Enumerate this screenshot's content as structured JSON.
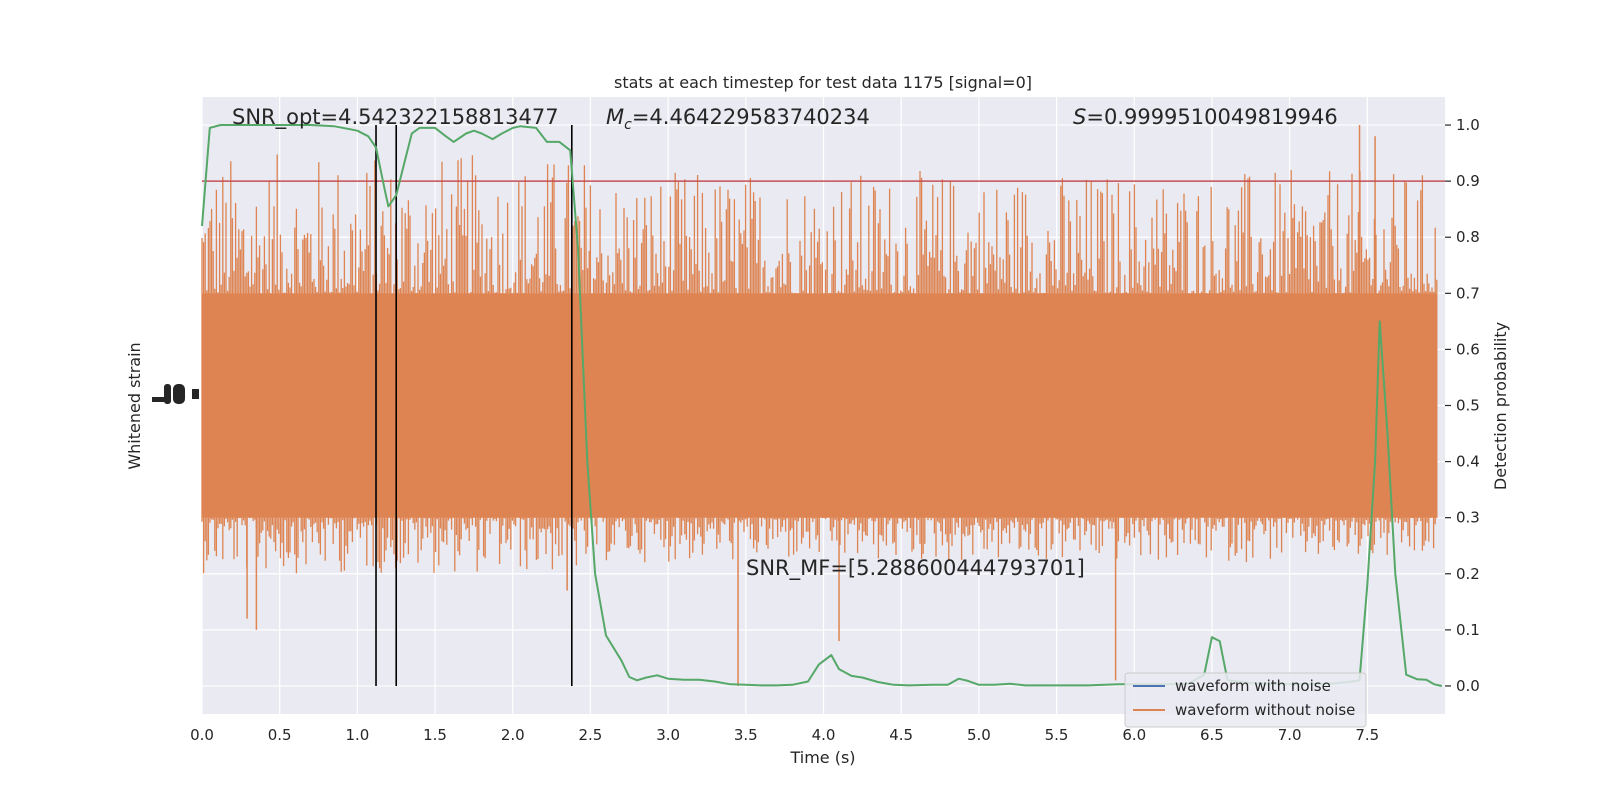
{
  "chart_data": {
    "type": "line",
    "title": "stats at each timestep for test data 1175 [signal=0]",
    "xlabel": "Time (s)",
    "ylabel_left": "Whitened strain",
    "ylabel_right": "Detection probability",
    "xlim": [
      0,
      8
    ],
    "ylim_right": [
      -0.05,
      1.05
    ],
    "x_ticks": [
      "0.0",
      "0.5",
      "1.0",
      "1.5",
      "2.0",
      "2.5",
      "3.0",
      "3.5",
      "4.0",
      "4.5",
      "5.0",
      "5.5",
      "6.0",
      "6.5",
      "7.0",
      "7.5"
    ],
    "y_ticks_right": [
      "0.0",
      "0.1",
      "0.2",
      "0.3",
      "0.4",
      "0.5",
      "0.6",
      "0.7",
      "0.8",
      "0.9",
      "1.0"
    ],
    "grid": true,
    "threshold": 0.9,
    "vertical_lines": [
      1.12,
      1.25,
      2.38
    ],
    "annotations": {
      "snr_opt": "SNR_opt=4.542322158813477",
      "mc_symbol": "M",
      "mc_sub": "c",
      "mc_value": "=4.464229583740234",
      "s_symbol": "S",
      "s_value": "=0.9999510049819946",
      "snr_mf": "SNR_MF=[5.288600444793701]"
    },
    "legend": {
      "position": "lower-right",
      "entries": [
        "waveform with noise",
        "waveform without noise"
      ]
    },
    "series": [
      {
        "name": "waveform without noise",
        "color": "#dd8452",
        "kind": "strain",
        "bands": [
          {
            "x": [
              0.0,
              2.5
            ],
            "outer": [
              0.2,
              0.95
            ],
            "body": [
              0.3,
              0.7
            ]
          },
          {
            "x": [
              2.5,
              7.95
            ],
            "outer": [
              0.22,
              0.92
            ],
            "body": [
              0.3,
              0.7
            ]
          }
        ],
        "spikes": [
          {
            "x": 3.45,
            "y": 0.0
          },
          {
            "x": 5.88,
            "y": 0.01
          },
          {
            "x": 7.45,
            "y": 1.0
          },
          {
            "x": 0.29,
            "y": 0.12
          },
          {
            "x": 0.35,
            "y": 0.1
          },
          {
            "x": 7.55,
            "y": 0.98
          },
          {
            "x": 4.1,
            "y": 0.08
          },
          {
            "x": 2.35,
            "y": 0.17
          }
        ]
      },
      {
        "name": "waveform with noise",
        "color": "#4c72b0",
        "kind": "hidden"
      },
      {
        "name": "Detection probability",
        "color": "#55a868",
        "kind": "probability",
        "points": [
          [
            0.0,
            0.82
          ],
          [
            0.05,
            0.995
          ],
          [
            0.12,
            1.0
          ],
          [
            0.3,
            1.0
          ],
          [
            0.5,
            1.0
          ],
          [
            0.7,
            1.0
          ],
          [
            0.85,
            0.998
          ],
          [
            1.0,
            0.99
          ],
          [
            1.07,
            0.98
          ],
          [
            1.12,
            0.96
          ],
          [
            1.18,
            0.88
          ],
          [
            1.2,
            0.855
          ],
          [
            1.25,
            0.875
          ],
          [
            1.3,
            0.93
          ],
          [
            1.35,
            0.985
          ],
          [
            1.4,
            0.995
          ],
          [
            1.5,
            0.995
          ],
          [
            1.57,
            0.98
          ],
          [
            1.62,
            0.97
          ],
          [
            1.7,
            0.985
          ],
          [
            1.75,
            0.99
          ],
          [
            1.8,
            0.985
          ],
          [
            1.87,
            0.975
          ],
          [
            1.93,
            0.985
          ],
          [
            2.0,
            0.995
          ],
          [
            2.05,
            0.998
          ],
          [
            2.15,
            0.995
          ],
          [
            2.22,
            0.97
          ],
          [
            2.3,
            0.97
          ],
          [
            2.37,
            0.955
          ],
          [
            2.42,
            0.78
          ],
          [
            2.48,
            0.4
          ],
          [
            2.53,
            0.2
          ],
          [
            2.6,
            0.09
          ],
          [
            2.7,
            0.045
          ],
          [
            2.75,
            0.016
          ],
          [
            2.8,
            0.01
          ],
          [
            2.86,
            0.015
          ],
          [
            2.93,
            0.019
          ],
          [
            3.0,
            0.013
          ],
          [
            3.1,
            0.011
          ],
          [
            3.2,
            0.011
          ],
          [
            3.3,
            0.008
          ],
          [
            3.4,
            0.003
          ],
          [
            3.5,
            0.002
          ],
          [
            3.6,
            0.001
          ],
          [
            3.7,
            0.001
          ],
          [
            3.8,
            0.002
          ],
          [
            3.9,
            0.008
          ],
          [
            3.97,
            0.038
          ],
          [
            4.05,
            0.055
          ],
          [
            4.1,
            0.03
          ],
          [
            4.18,
            0.018
          ],
          [
            4.25,
            0.015
          ],
          [
            4.35,
            0.007
          ],
          [
            4.45,
            0.002
          ],
          [
            4.55,
            0.001
          ],
          [
            4.7,
            0.002
          ],
          [
            4.8,
            0.002
          ],
          [
            4.87,
            0.013
          ],
          [
            4.93,
            0.009
          ],
          [
            5.0,
            0.002
          ],
          [
            5.1,
            0.002
          ],
          [
            5.2,
            0.004
          ],
          [
            5.3,
            0.001
          ],
          [
            5.5,
            0.001
          ],
          [
            5.7,
            0.001
          ],
          [
            5.9,
            0.003
          ],
          [
            6.0,
            0.003
          ],
          [
            6.2,
            0.003
          ],
          [
            6.35,
            0.004
          ],
          [
            6.45,
            0.02
          ],
          [
            6.5,
            0.087
          ],
          [
            6.55,
            0.08
          ],
          [
            6.6,
            0.01
          ],
          [
            6.75,
            0.005
          ],
          [
            7.0,
            0.003
          ],
          [
            7.25,
            0.004
          ],
          [
            7.38,
            0.007
          ],
          [
            7.45,
            0.01
          ],
          [
            7.5,
            0.18
          ],
          [
            7.55,
            0.4
          ],
          [
            7.58,
            0.65
          ],
          [
            7.63,
            0.45
          ],
          [
            7.68,
            0.2
          ],
          [
            7.75,
            0.02
          ],
          [
            7.82,
            0.012
          ],
          [
            7.88,
            0.011
          ],
          [
            7.93,
            0.003
          ],
          [
            7.98,
            0.0
          ]
        ]
      }
    ]
  }
}
